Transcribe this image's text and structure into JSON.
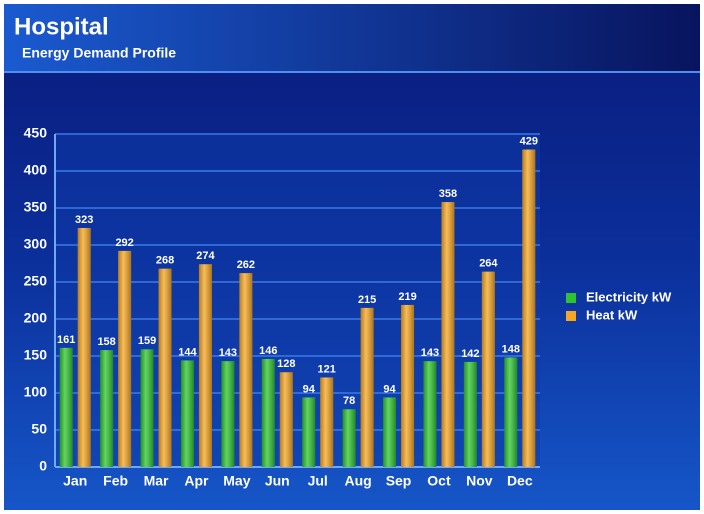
{
  "chart_data": {
    "type": "bar",
    "title": "Hospital",
    "subtitle": "Energy Demand Profile",
    "categories": [
      "Jan",
      "Feb",
      "Mar",
      "Apr",
      "May",
      "Jun",
      "Jul",
      "Aug",
      "Sep",
      "Oct",
      "Nov",
      "Dec"
    ],
    "series": [
      {
        "name": "Electricity kW",
        "color": "#2fc42f",
        "values": [
          161,
          158,
          159,
          144,
          143,
          146,
          94,
          78,
          94,
          143,
          142,
          148
        ]
      },
      {
        "name": "Heat kW",
        "color": "#f5a623",
        "values": [
          323,
          292,
          268,
          274,
          262,
          128,
          121,
          215,
          219,
          358,
          264,
          429
        ]
      }
    ],
    "ylim": [
      0,
      450
    ],
    "yticks": [
      0,
      50,
      100,
      150,
      200,
      250,
      300,
      350,
      400,
      450
    ],
    "grid": true,
    "legend": "right"
  }
}
